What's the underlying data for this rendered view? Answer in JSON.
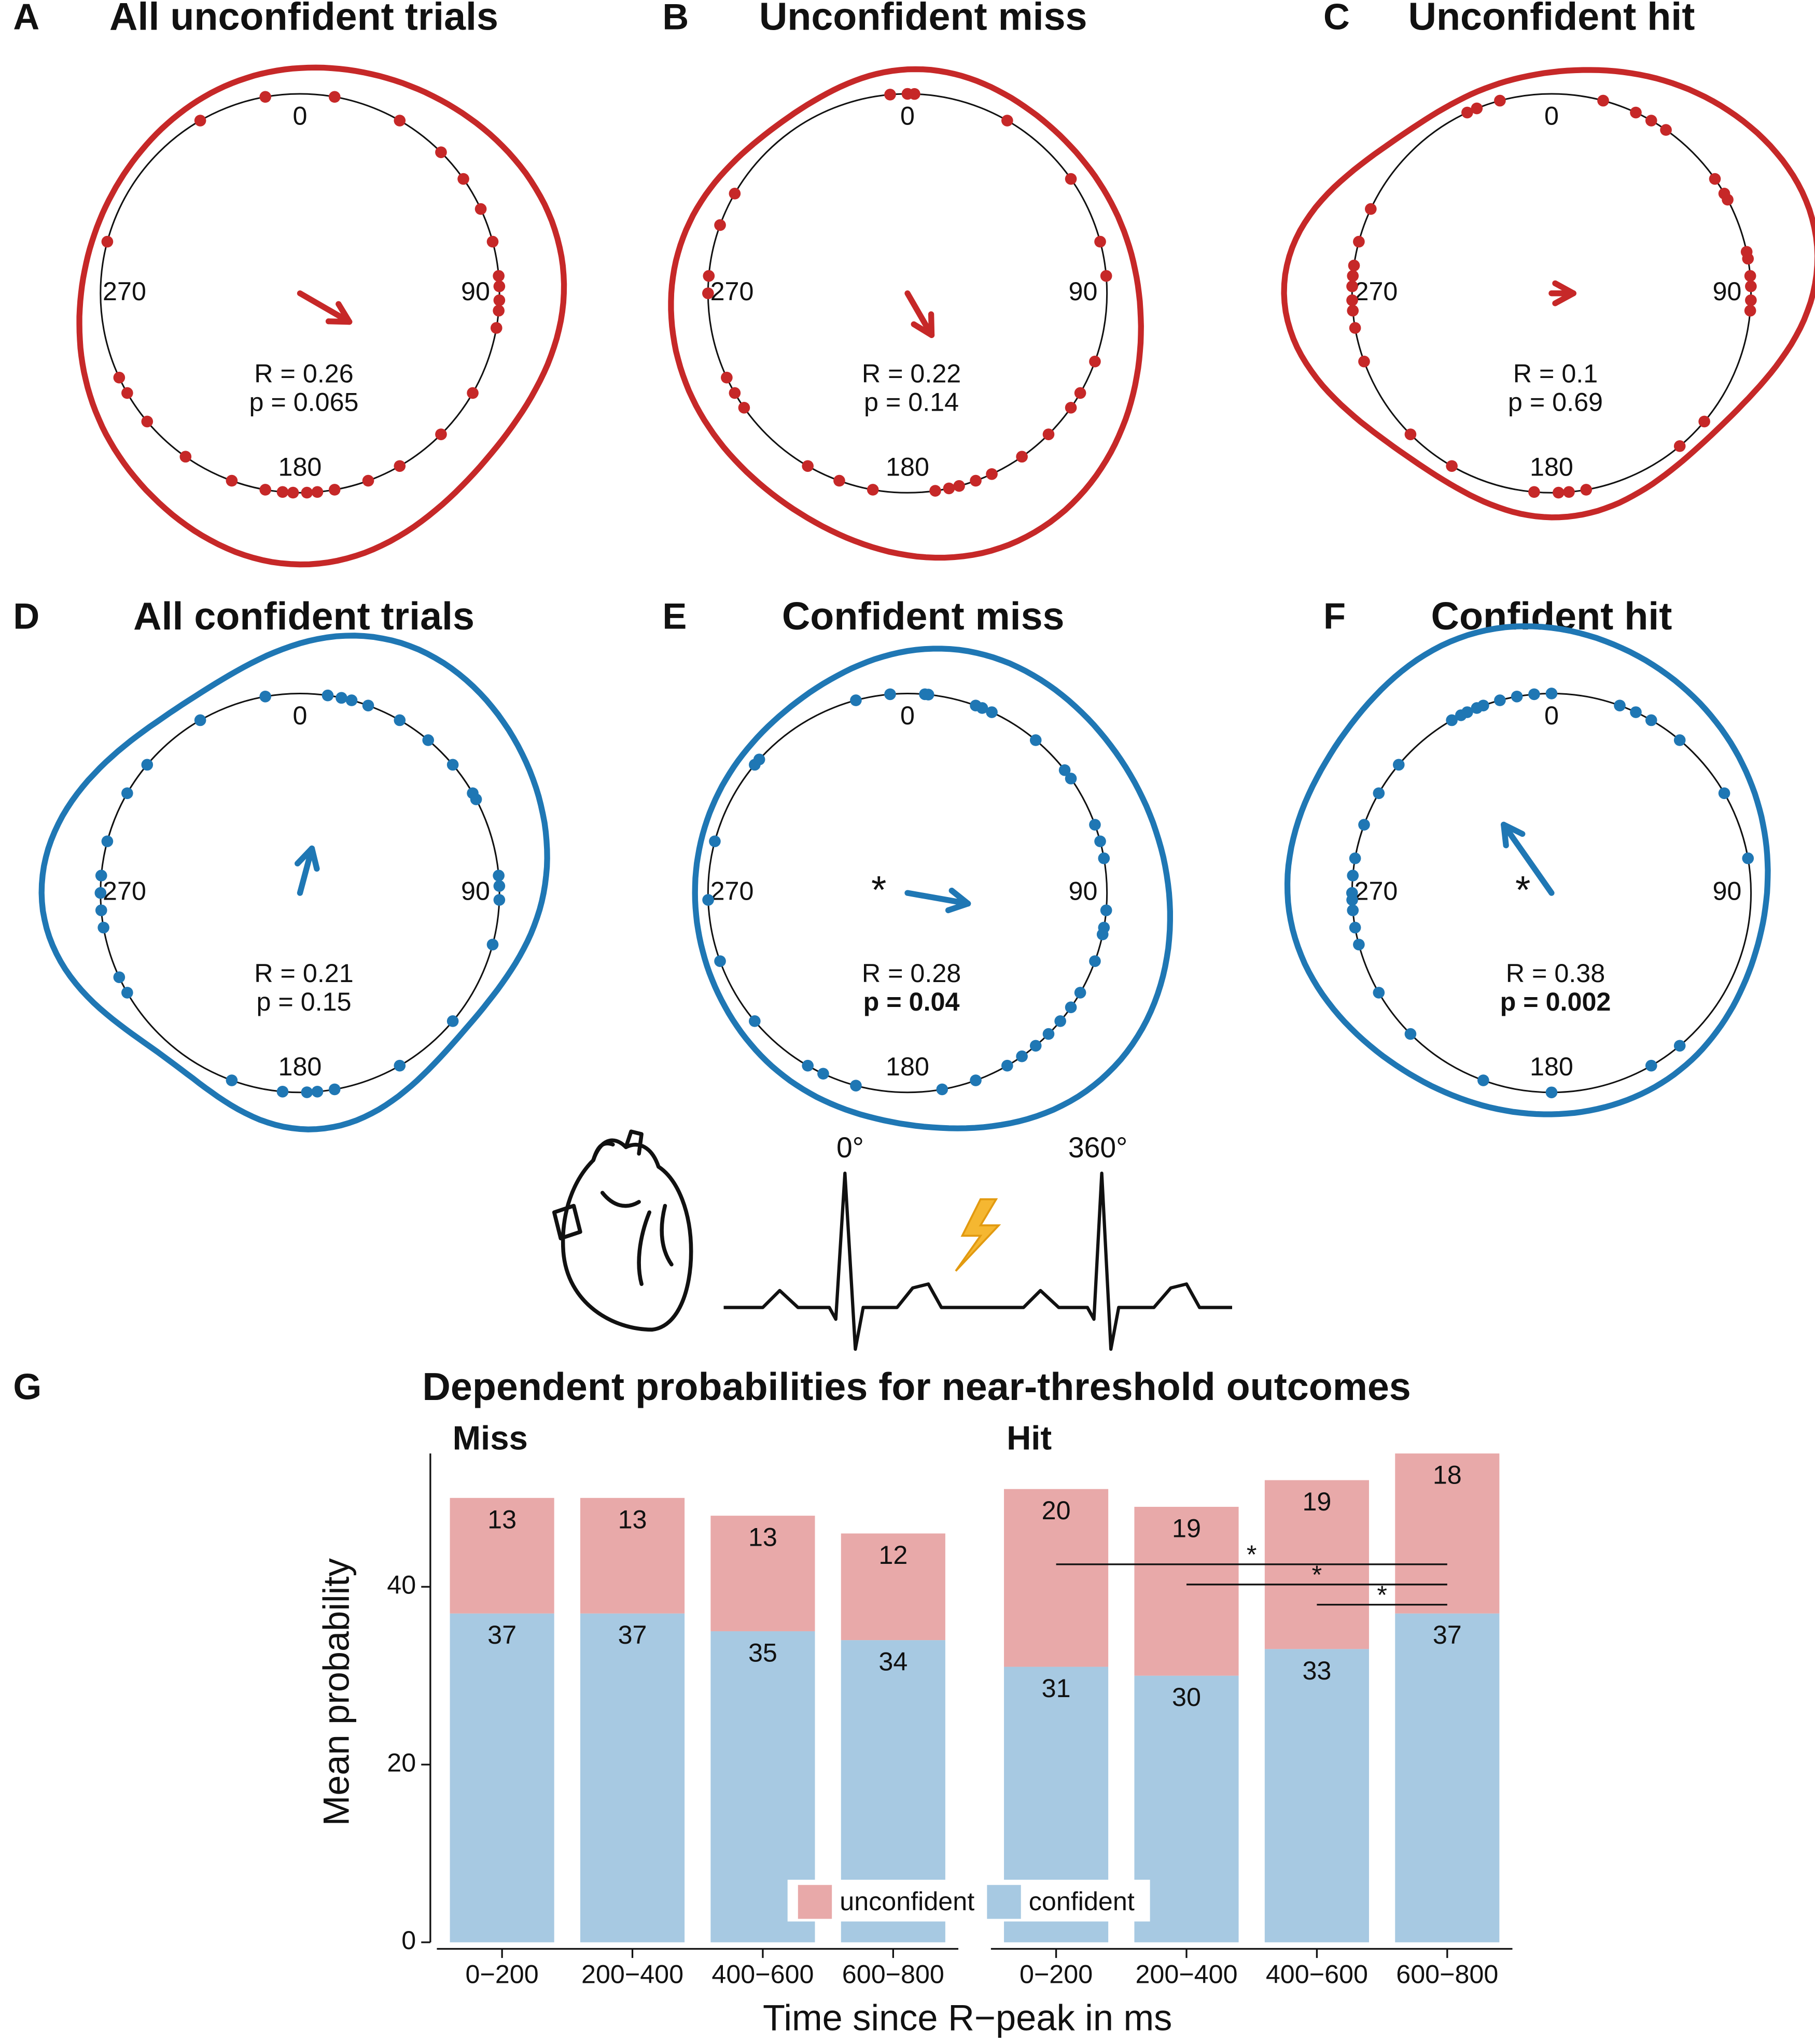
{
  "chart_data": [
    {
      "type": "polar_scatter",
      "panel": "A",
      "title": "All unconfident trials",
      "color": "#c62828",
      "ticks": [
        0,
        90,
        180,
        270
      ],
      "angles": [
        350,
        10,
        30,
        45,
        55,
        65,
        75,
        85,
        88,
        92,
        95,
        100,
        120,
        135,
        150,
        160,
        170,
        175,
        178,
        182,
        185,
        190,
        200,
        215,
        230,
        240,
        245,
        285,
        330
      ],
      "mean_angle": 120,
      "R": 0.26,
      "R_label": "R = 0.26",
      "p_label": "p = 0.065",
      "p_bold": false
    },
    {
      "type": "polar_scatter",
      "panel": "B",
      "title": "Unconfident miss",
      "color": "#c62828",
      "ticks": [
        0,
        90,
        180,
        270
      ],
      "angles": [
        355,
        0,
        2,
        30,
        55,
        75,
        85,
        110,
        120,
        125,
        135,
        145,
        155,
        160,
        165,
        168,
        172,
        190,
        200,
        210,
        235,
        240,
        245,
        270,
        275,
        290,
        300
      ],
      "mean_angle": 150,
      "R": 0.22,
      "R_label": "R = 0.22",
      "p_label": "p = 0.14",
      "p_bold": false
    },
    {
      "type": "polar_scatter",
      "panel": "C",
      "title": "Unconfident hit",
      "color": "#c62828",
      "ticks": [
        0,
        90,
        180,
        270
      ],
      "angles": [
        335,
        338,
        345,
        15,
        25,
        30,
        35,
        55,
        60,
        62,
        78,
        80,
        85,
        88,
        92,
        95,
        130,
        140,
        170,
        175,
        178,
        185,
        210,
        225,
        250,
        260,
        265,
        268,
        272,
        275,
        278,
        285,
        295
      ],
      "mean_angle": 90,
      "R": 0.1,
      "R_label": "R = 0.1",
      "p_label": "p = 0.69",
      "p_bold": false
    },
    {
      "type": "polar_scatter",
      "panel": "D",
      "title": "All confident trials",
      "color": "#1f77b4",
      "ticks": [
        0,
        90,
        180,
        270
      ],
      "angles": [
        330,
        310,
        350,
        8,
        12,
        15,
        20,
        30,
        40,
        50,
        60,
        62,
        85,
        88,
        92,
        105,
        130,
        150,
        170,
        175,
        178,
        185,
        200,
        240,
        245,
        260,
        265,
        270,
        275,
        285,
        300
      ],
      "mean_angle": 15,
      "R": 0.21,
      "R_label": "R = 0.21",
      "p_label": "p = 0.15",
      "p_bold": false
    },
    {
      "type": "polar_scatter",
      "panel": "E",
      "title": "Confident miss",
      "color": "#1f77b4",
      "ticks": [
        0,
        90,
        180,
        270
      ],
      "angles": [
        345,
        355,
        5,
        6,
        20,
        22,
        25,
        40,
        52,
        55,
        70,
        75,
        80,
        95,
        100,
        102,
        110,
        120,
        125,
        130,
        135,
        140,
        145,
        150,
        160,
        170,
        195,
        205,
        210,
        230,
        250,
        268,
        285,
        310,
        312
      ],
      "mean_angle": 100,
      "R": 0.28,
      "R_label": "R = 0.28",
      "p_label": "p = 0.04",
      "p_bold": true,
      "star": "*"
    },
    {
      "type": "polar_scatter",
      "panel": "F",
      "title": "Confident hit",
      "color": "#1f77b4",
      "ticks": [
        0,
        90,
        180,
        270
      ],
      "angles": [
        330,
        333,
        335,
        338,
        340,
        345,
        350,
        355,
        0,
        20,
        25,
        30,
        40,
        60,
        80,
        140,
        150,
        180,
        200,
        225,
        240,
        255,
        260,
        265,
        268,
        270,
        275,
        280,
        290,
        300,
        310
      ],
      "mean_angle": 325,
      "R": 0.38,
      "R_label": "R = 0.38",
      "p_label": "p = 0.002",
      "p_bold": true,
      "star": "*"
    },
    {
      "type": "stacked_bar",
      "panel": "G",
      "title": "Dependent probabilities for near-threshold outcomes",
      "x_label": "Time since R−peak in ms",
      "y_label": "Mean probability",
      "categories": [
        "0−200",
        "200−400",
        "400−600",
        "600−800"
      ],
      "ylim": [
        0,
        55
      ],
      "yticks": [
        0,
        20,
        40
      ],
      "legend": [
        {
          "name": "unconfident",
          "color": "#e8a9a9"
        },
        {
          "name": "confident",
          "color": "#a7c9e2"
        }
      ],
      "facets": [
        {
          "name": "Miss",
          "series": [
            {
              "values": [
                13,
                13,
                13,
                12
              ]
            },
            {
              "values": [
                37,
                37,
                35,
                34
              ]
            }
          ]
        },
        {
          "name": "Hit",
          "series": [
            {
              "values": [
                20,
                19,
                19,
                18
              ]
            },
            {
              "values": [
                31,
                30,
                33,
                37
              ]
            }
          ],
          "significance": [
            {
              "from": "0−200",
              "to": "600−800",
              "label": "*"
            },
            {
              "from": "200−400",
              "to": "600−800",
              "label": "*"
            },
            {
              "from": "400−600",
              "to": "600−800",
              "label": "*"
            }
          ]
        }
      ]
    }
  ],
  "diagram": {
    "labels": [
      "0°",
      "360°"
    ]
  }
}
